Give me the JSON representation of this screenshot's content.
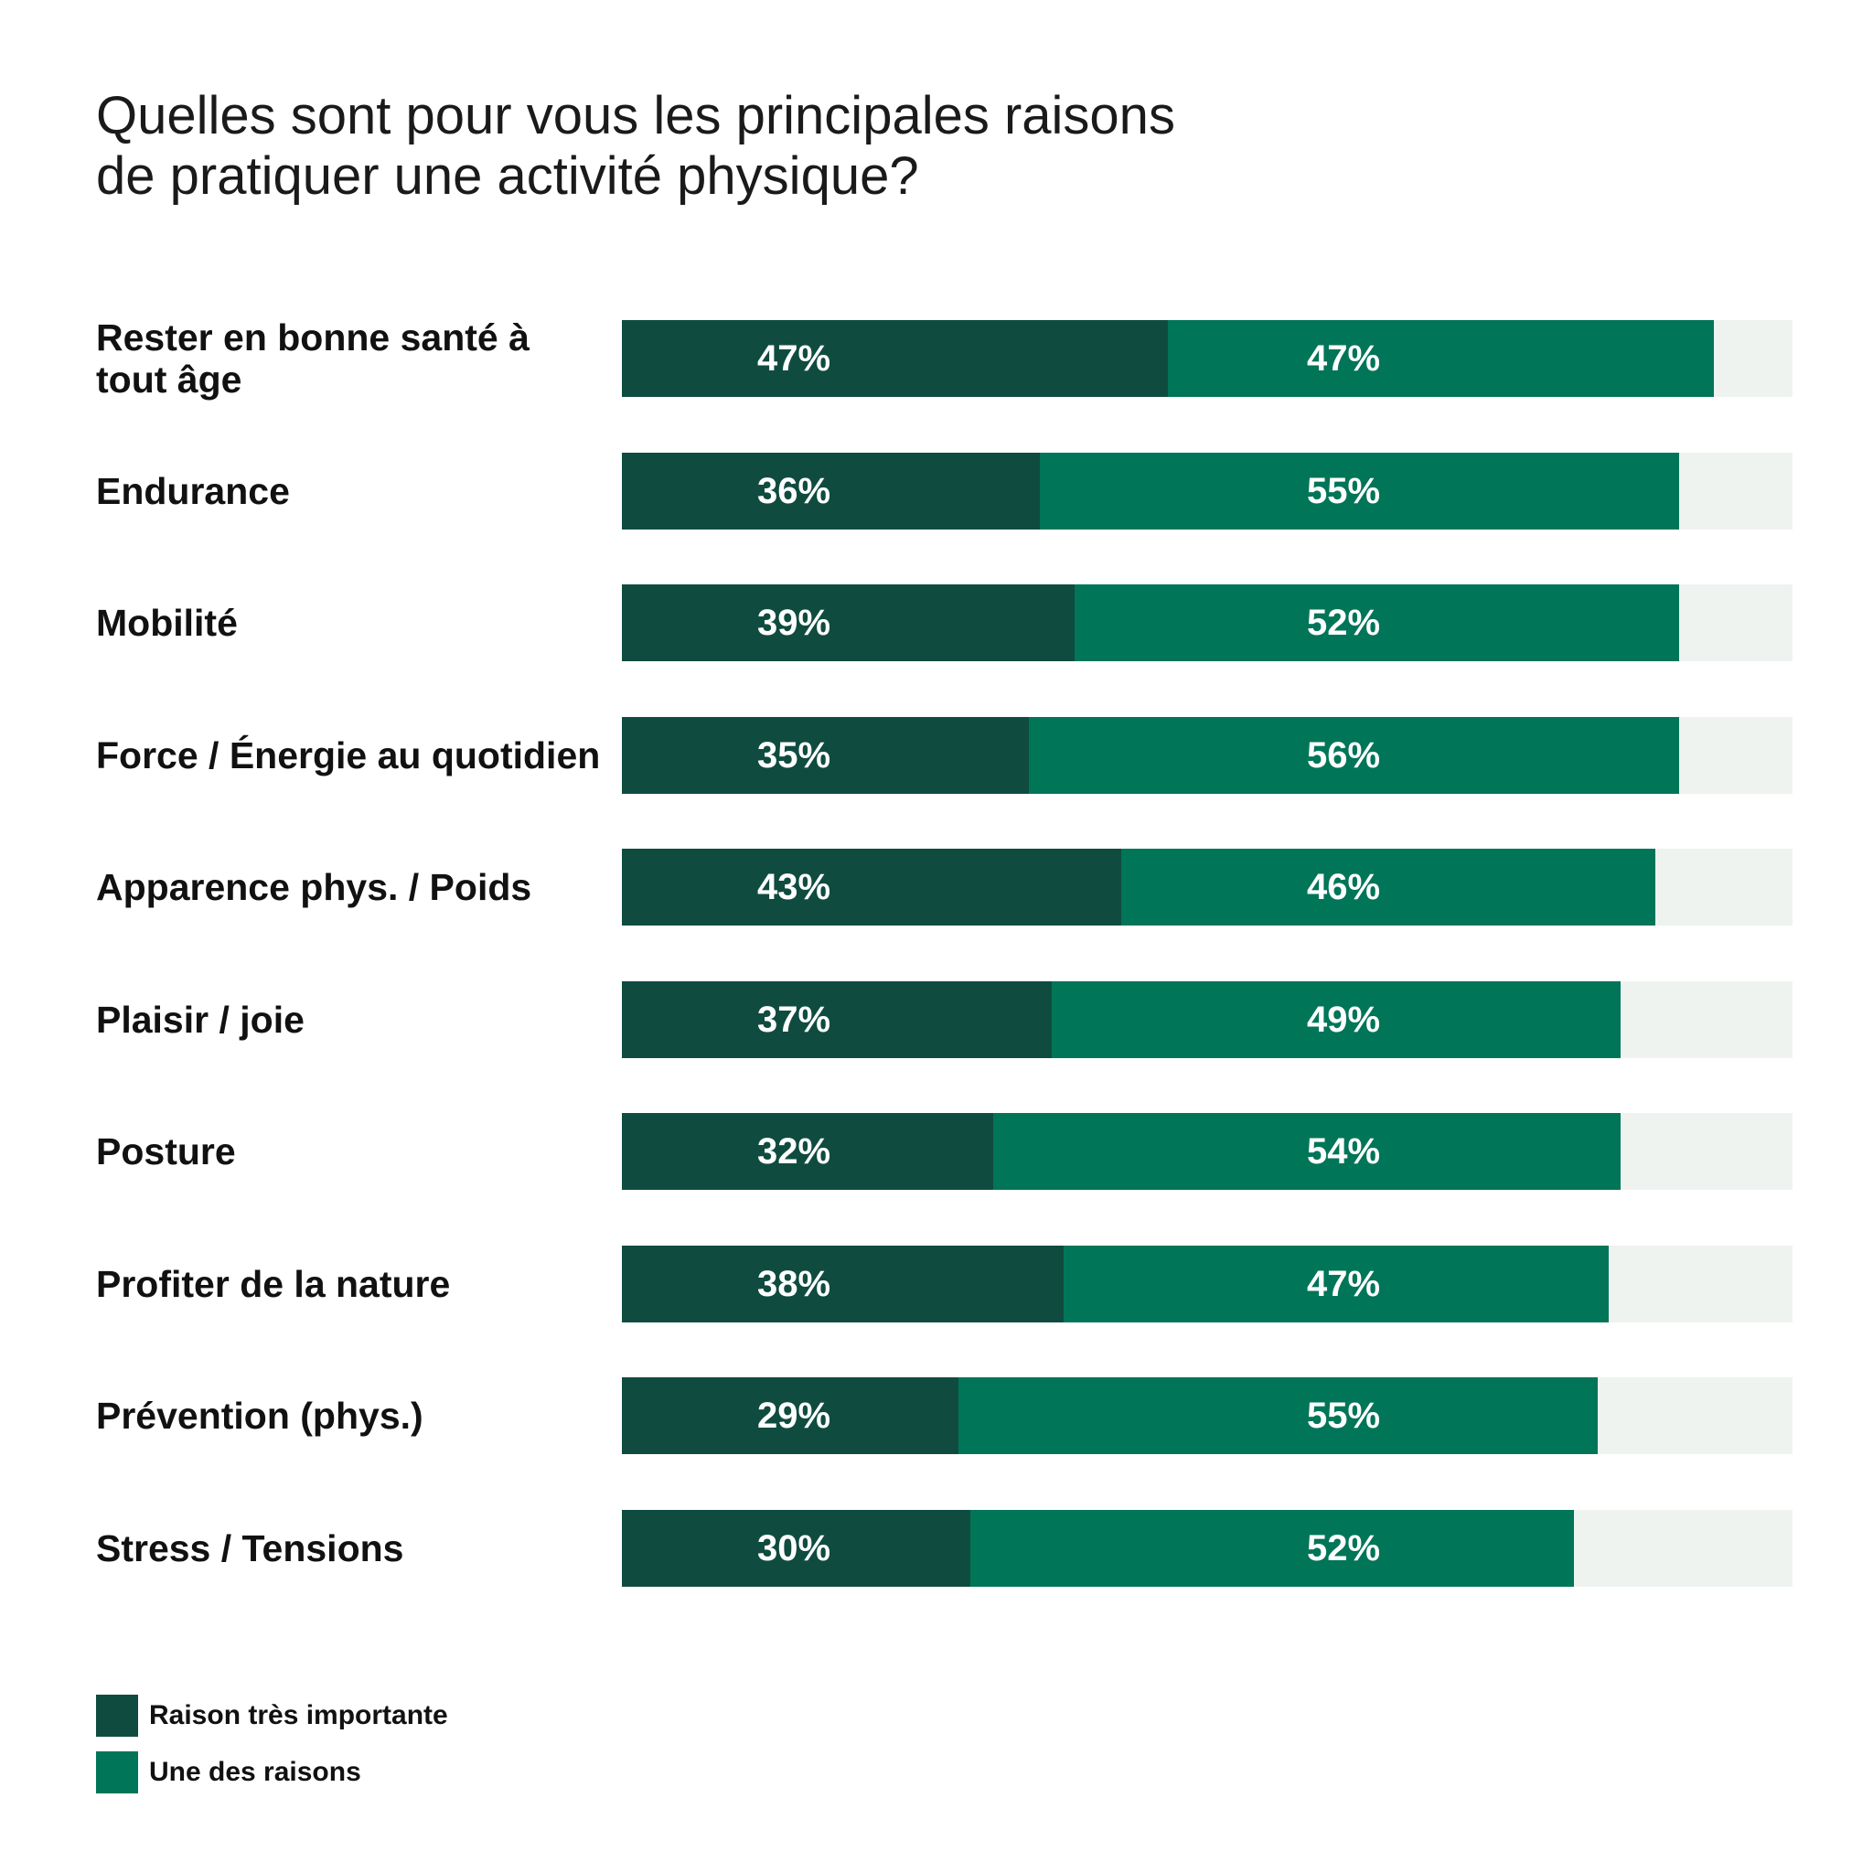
{
  "title_lines": [
    "Quelles sont pour vous les principales raisons",
    "de pratiquer une activité physique?"
  ],
  "colors": {
    "series_1": "#0f4c3f",
    "series_2": "#007558",
    "track": "#eef3f0"
  },
  "chart_data": {
    "type": "bar",
    "orientation": "horizontal",
    "stacked": true,
    "title": "Quelles sont pour vous les principales raisons de pratiquer une activité physique?",
    "xlim": [
      0,
      100
    ],
    "grid": false,
    "legend_position": "bottom-left",
    "categories": [
      "Rester en bonne santé à tout âge",
      "Endurance",
      "Mobilité",
      "Force / Énergie au quotidien",
      "Apparence phys. / Poids",
      "Plaisir / joie",
      "Posture",
      "Profiter de la nature",
      "Prévention (phys.)",
      "Stress / Tensions"
    ],
    "series": [
      {
        "name": "Raison très importante",
        "values": [
          47,
          36,
          39,
          35,
          43,
          37,
          32,
          38,
          29,
          30
        ],
        "labels": [
          "47%",
          "36%",
          "39%",
          "35%",
          "43%",
          "37%",
          "32%",
          "38%",
          "29%",
          "30%"
        ]
      },
      {
        "name": "Une des raisons",
        "values": [
          47,
          55,
          52,
          56,
          46,
          49,
          54,
          47,
          55,
          52
        ],
        "labels": [
          "47%",
          "55%",
          "52%",
          "56%",
          "46%",
          "49%",
          "54%",
          "47%",
          "55%",
          "52%"
        ]
      }
    ]
  }
}
